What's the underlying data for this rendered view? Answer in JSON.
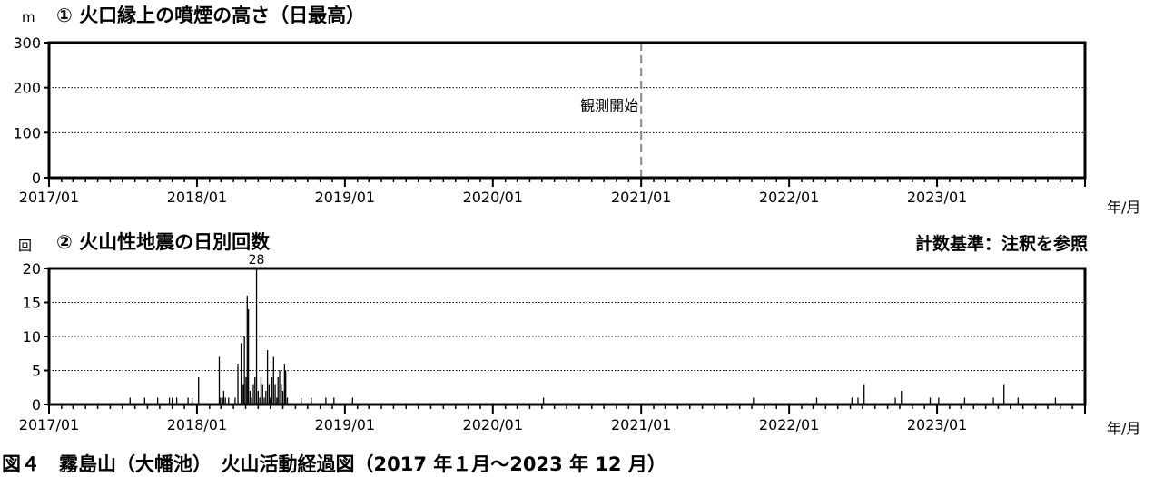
{
  "figure": {
    "caption": "図４　霧島山（大幡池）　火山活動経過図（2017 年１月～2023 年 12 月）"
  },
  "chart_data": [
    {
      "type": "line",
      "title": "① 火口縁上の噴煙の高さ（日最高）",
      "ylabel": "m",
      "xlabel": "年/月",
      "ylim": [
        0,
        300
      ],
      "yticks": [
        0,
        100,
        200,
        300
      ],
      "xlim": [
        "2017/01",
        "2023/12"
      ],
      "xticks": [
        "2017/01",
        "2018/01",
        "2019/01",
        "2020/01",
        "2021/01",
        "2022/01",
        "2023/01"
      ],
      "grid": true,
      "annotations": [
        {
          "text": "観測開始",
          "date": "2021/01/01"
        }
      ],
      "series": []
    },
    {
      "type": "bar",
      "title": "② 火山性地震の日別回数",
      "note": "計数基準：注釈を参照",
      "ylabel": "回",
      "xlabel": "年/月",
      "ylim": [
        0,
        20
      ],
      "yticks": [
        0,
        5,
        10,
        15,
        20
      ],
      "xlim": [
        "2017/01",
        "2023/12"
      ],
      "xticks": [
        "2017/01",
        "2018/01",
        "2019/01",
        "2020/01",
        "2021/01",
        "2022/01",
        "2023/01"
      ],
      "grid": true,
      "annotations": [
        {
          "text": "28",
          "date": "2018/05/28",
          "value": 28
        }
      ],
      "bars": [
        [
          "2017/07/20",
          1
        ],
        [
          "2017/08/25",
          1
        ],
        [
          "2017/09/26",
          1
        ],
        [
          "2017/10/25",
          1
        ],
        [
          "2017/11/01",
          1
        ],
        [
          "2017/11/12",
          1
        ],
        [
          "2017/12/10",
          1
        ],
        [
          "2017/12/20",
          1
        ],
        [
          "2018/01/05",
          4
        ],
        [
          "2018/02/25",
          7
        ],
        [
          "2018/02/28",
          1
        ],
        [
          "2018/03/05",
          1
        ],
        [
          "2018/03/08",
          2
        ],
        [
          "2018/03/12",
          1
        ],
        [
          "2018/03/20",
          1
        ],
        [
          "2018/04/05",
          1
        ],
        [
          "2018/04/12",
          6
        ],
        [
          "2018/04/20",
          9
        ],
        [
          "2018/04/25",
          3
        ],
        [
          "2018/04/28",
          10
        ],
        [
          "2018/05/02",
          4
        ],
        [
          "2018/05/05",
          16
        ],
        [
          "2018/05/08",
          14
        ],
        [
          "2018/05/12",
          2
        ],
        [
          "2018/05/16",
          1
        ],
        [
          "2018/05/20",
          3
        ],
        [
          "2018/05/24",
          4
        ],
        [
          "2018/05/28",
          28
        ],
        [
          "2018/06/01",
          2
        ],
        [
          "2018/06/05",
          1
        ],
        [
          "2018/06/08",
          4
        ],
        [
          "2018/06/12",
          3
        ],
        [
          "2018/06/16",
          1
        ],
        [
          "2018/06/20",
          2
        ],
        [
          "2018/06/24",
          8
        ],
        [
          "2018/06/28",
          3
        ],
        [
          "2018/07/01",
          1
        ],
        [
          "2018/07/05",
          4
        ],
        [
          "2018/07/09",
          7
        ],
        [
          "2018/07/13",
          3
        ],
        [
          "2018/07/17",
          1
        ],
        [
          "2018/07/20",
          4
        ],
        [
          "2018/07/24",
          5
        ],
        [
          "2018/07/28",
          3
        ],
        [
          "2018/08/01",
          2
        ],
        [
          "2018/08/05",
          6
        ],
        [
          "2018/08/08",
          5
        ],
        [
          "2018/08/12",
          1
        ],
        [
          "2018/09/15",
          1
        ],
        [
          "2018/10/10",
          1
        ],
        [
          "2018/11/15",
          1
        ],
        [
          "2018/12/05",
          1
        ],
        [
          "2019/01/20",
          1
        ],
        [
          "2020/05/05",
          1
        ],
        [
          "2021/10/05",
          1
        ],
        [
          "2022/03/10",
          1
        ],
        [
          "2022/06/05",
          1
        ],
        [
          "2022/06/20",
          1
        ],
        [
          "2022/07/05",
          3
        ],
        [
          "2022/09/20",
          1
        ],
        [
          "2022/10/05",
          2
        ],
        [
          "2022/12/15",
          1
        ],
        [
          "2023/01/05",
          1
        ],
        [
          "2023/03/10",
          1
        ],
        [
          "2023/05/20",
          1
        ],
        [
          "2023/06/15",
          3
        ],
        [
          "2023/07/20",
          1
        ],
        [
          "2023/10/20",
          1
        ]
      ]
    }
  ]
}
